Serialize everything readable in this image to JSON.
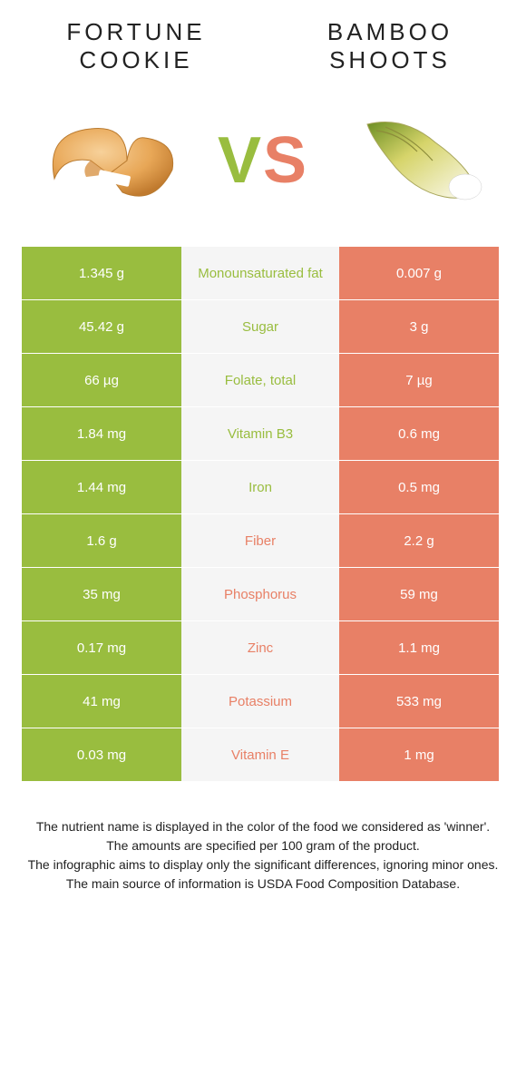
{
  "colors": {
    "green": "#99bd3f",
    "salmon": "#e88066",
    "row_bg_light": "#f5f5f5",
    "text_dark": "#333333",
    "white": "#ffffff"
  },
  "food_left": {
    "title": "Fortune cookie"
  },
  "food_right": {
    "title": "Bamboo shoots"
  },
  "vs": {
    "v": "V",
    "s": "S"
  },
  "rows": [
    {
      "nutrient": "Monounsaturated fat",
      "left": "1.345 g",
      "right": "0.007 g",
      "winner": "left"
    },
    {
      "nutrient": "Sugar",
      "left": "45.42 g",
      "right": "3 g",
      "winner": "left"
    },
    {
      "nutrient": "Folate, total",
      "left": "66 µg",
      "right": "7 µg",
      "winner": "left"
    },
    {
      "nutrient": "Vitamin B3",
      "left": "1.84 mg",
      "right": "0.6 mg",
      "winner": "left"
    },
    {
      "nutrient": "Iron",
      "left": "1.44 mg",
      "right": "0.5 mg",
      "winner": "left"
    },
    {
      "nutrient": "Fiber",
      "left": "1.6 g",
      "right": "2.2 g",
      "winner": "right"
    },
    {
      "nutrient": "Phosphorus",
      "left": "35 mg",
      "right": "59 mg",
      "winner": "right"
    },
    {
      "nutrient": "Zinc",
      "left": "0.17 mg",
      "right": "1.1 mg",
      "winner": "right"
    },
    {
      "nutrient": "Potassium",
      "left": "41 mg",
      "right": "533 mg",
      "winner": "right"
    },
    {
      "nutrient": "Vitamin E",
      "left": "0.03 mg",
      "right": "1 mg",
      "winner": "right"
    }
  ],
  "footnotes": [
    "The nutrient name is displayed in the color of the food we considered as 'winner'.",
    "The amounts are specified per 100 gram of the product.",
    "The infographic aims to display only the significant differences, ignoring minor ones.",
    "The main source of information is USDA Food Composition Database."
  ]
}
